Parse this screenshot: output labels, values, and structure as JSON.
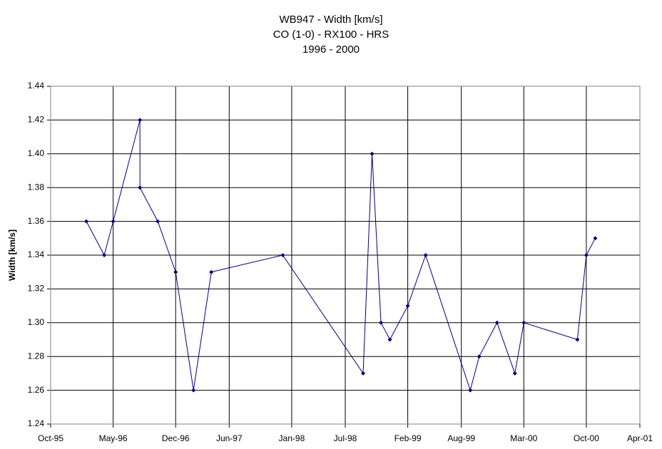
{
  "chart_data": {
    "type": "line",
    "title_lines": [
      "WB947 - Width [km/s]",
      "CO (1-0) - RX100 - HRS",
      "1996 - 2000"
    ],
    "y_label": "Width [km/s]",
    "x": [
      "1996-02",
      "1996-04",
      "1996-05",
      "1996-08",
      "1996-08",
      "1996-10",
      "1996-12",
      "1997-02",
      "1997-04",
      "1997-12",
      "1998-09",
      "1998-10",
      "1998-11",
      "1998-12",
      "1999-02",
      "1999-04",
      "1999-09",
      "1999-10",
      "1999-12",
      "2000-02",
      "2000-03",
      "2000-09",
      "2000-10",
      "2000-11"
    ],
    "series": [
      {
        "color": "#000080",
        "values": [
          1.36,
          1.34,
          1.36,
          1.42,
          1.38,
          1.36,
          1.33,
          1.26,
          1.33,
          1.34,
          1.27,
          1.4,
          1.3,
          1.29,
          1.31,
          1.34,
          1.26,
          1.28,
          1.3,
          1.27,
          1.3,
          1.29,
          1.34,
          1.35
        ]
      }
    ],
    "xlim": [
      "1995-10",
      "2001-04"
    ],
    "xticks": [
      {
        "value": "1995-10",
        "label": "Oct-95"
      },
      {
        "value": "1996-05",
        "label": "May-96"
      },
      {
        "value": "1996-12",
        "label": "Dec-96"
      },
      {
        "value": "1997-06",
        "label": "Jun-97"
      },
      {
        "value": "1998-01",
        "label": "Jan-98"
      },
      {
        "value": "1998-07",
        "label": "Jul-98"
      },
      {
        "value": "1999-02",
        "label": "Feb-99"
      },
      {
        "value": "1999-08",
        "label": "Aug-99"
      },
      {
        "value": "2000-03",
        "label": "Mar-00"
      },
      {
        "value": "2000-10",
        "label": "Oct-00"
      },
      {
        "value": "2001-04",
        "label": "Apr-01"
      }
    ],
    "ylim": [
      1.24,
      1.44
    ],
    "yticks": [
      1.24,
      1.26,
      1.28,
      {
        "value": 1.3,
        "label": "1.30"
      },
      1.32,
      1.34,
      1.36,
      1.38,
      {
        "value": 1.4,
        "label": "1.40"
      },
      1.42,
      1.44
    ],
    "grid": true
  }
}
